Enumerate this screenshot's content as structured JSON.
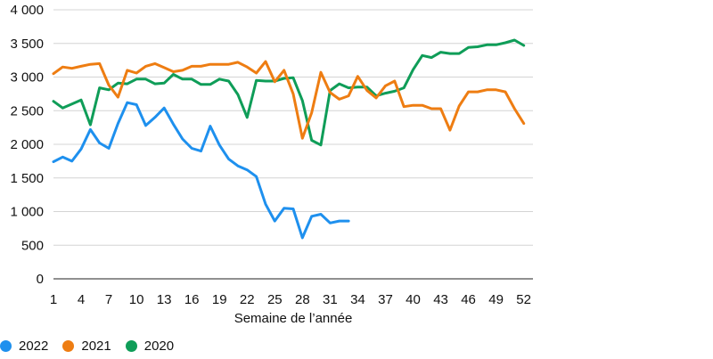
{
  "chart_data": {
    "type": "line",
    "xlabel": "Semaine de l’année",
    "ylabel": "",
    "xlim": [
      1,
      53
    ],
    "ylim": [
      0,
      4000
    ],
    "x_ticks": [
      1,
      4,
      7,
      10,
      13,
      16,
      19,
      22,
      25,
      28,
      31,
      34,
      37,
      40,
      43,
      46,
      49,
      52
    ],
    "y_ticks": [
      {
        "value": 0,
        "label": "0"
      },
      {
        "value": 500,
        "label": "500"
      },
      {
        "value": 1000,
        "label": "1 000"
      },
      {
        "value": 1500,
        "label": "1 500"
      },
      {
        "value": 2000,
        "label": "2 000"
      },
      {
        "value": 2500,
        "label": "2 500"
      },
      {
        "value": 3000,
        "label": "3 000"
      },
      {
        "value": 3500,
        "label": "3 500"
      },
      {
        "value": 4000,
        "label": "4 000"
      }
    ],
    "grid": "horizontal",
    "legend_position": "bottom-left",
    "series": [
      {
        "name": "2020",
        "color": "#0f9d58",
        "x": [
          1,
          2,
          3,
          4,
          5,
          6,
          7,
          8,
          9,
          10,
          11,
          12,
          13,
          14,
          15,
          16,
          17,
          18,
          19,
          20,
          21,
          22,
          23,
          24,
          25,
          26,
          27,
          28,
          29,
          30,
          31,
          32,
          33,
          34,
          35,
          36,
          37,
          38,
          39,
          40,
          41,
          42,
          43,
          44,
          45,
          46,
          47,
          48,
          49,
          50,
          51,
          52
        ],
        "values": [
          2640,
          2540,
          2600,
          2660,
          2290,
          2840,
          2810,
          2910,
          2900,
          2970,
          2970,
          2900,
          2910,
          3040,
          2970,
          2970,
          2890,
          2890,
          2970,
          2940,
          2740,
          2400,
          2950,
          2940,
          2940,
          2980,
          2990,
          2650,
          2060,
          1990,
          2800,
          2900,
          2840,
          2850,
          2850,
          2720,
          2760,
          2790,
          2840,
          3110,
          3320,
          3290,
          3370,
          3350,
          3350,
          3440,
          3450,
          3480,
          3480,
          3510,
          3550,
          3470
        ]
      },
      {
        "name": "2021",
        "color": "#ee7d12",
        "x": [
          1,
          2,
          3,
          4,
          5,
          6,
          7,
          8,
          9,
          10,
          11,
          12,
          13,
          14,
          15,
          16,
          17,
          18,
          19,
          20,
          21,
          22,
          23,
          24,
          25,
          26,
          27,
          28,
          29,
          30,
          31,
          32,
          33,
          34,
          35,
          36,
          37,
          38,
          39,
          40,
          41,
          42,
          43,
          44,
          45,
          46,
          47,
          48,
          49,
          50,
          51,
          52
        ],
        "values": [
          3050,
          3150,
          3130,
          3160,
          3190,
          3200,
          2880,
          2700,
          3100,
          3060,
          3160,
          3200,
          3140,
          3080,
          3100,
          3160,
          3160,
          3190,
          3190,
          3190,
          3220,
          3150,
          3060,
          3230,
          2930,
          3100,
          2750,
          2090,
          2470,
          3070,
          2770,
          2670,
          2720,
          3010,
          2800,
          2690,
          2870,
          2940,
          2560,
          2580,
          2580,
          2530,
          2530,
          2210,
          2570,
          2780,
          2780,
          2810,
          2810,
          2780,
          2530,
          2310
        ]
      },
      {
        "name": "2022",
        "color": "#1e90ee",
        "x": [
          1,
          2,
          3,
          4,
          5,
          6,
          7,
          8,
          9,
          10,
          11,
          12,
          13,
          14,
          15,
          16,
          17,
          18,
          19,
          20,
          21,
          22,
          23,
          24,
          25,
          26,
          27,
          28,
          29,
          30,
          31,
          32,
          33
        ],
        "values": [
          1740,
          1810,
          1750,
          1930,
          2220,
          2020,
          1940,
          2310,
          2620,
          2590,
          2280,
          2400,
          2540,
          2300,
          2080,
          1940,
          1900,
          2270,
          1990,
          1780,
          1680,
          1620,
          1520,
          1110,
          860,
          1050,
          1040,
          610,
          930,
          960,
          830,
          860,
          860
        ]
      }
    ]
  }
}
